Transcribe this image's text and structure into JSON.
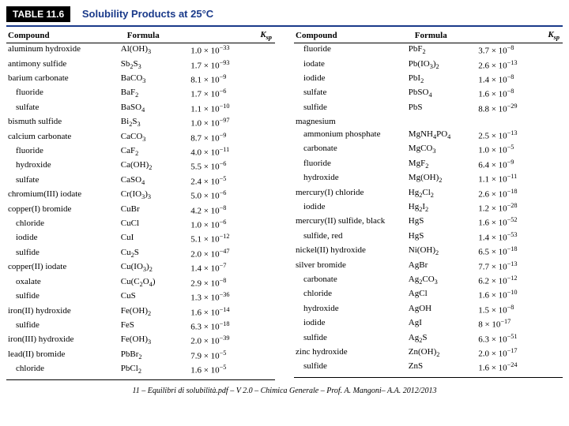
{
  "header": {
    "badge": "TABLE 11.6",
    "title": "Solubility Products at 25°C"
  },
  "columns_header": {
    "compound": "Compound",
    "formula": "Formula",
    "ksp_html": "<i>K</i><sub>sp</sub>"
  },
  "left": [
    {
      "compound": "aluminum hydroxide",
      "formula": "Al(OH)<sub>3</sub>",
      "ksp": "1.0 × 10<sup>−33</sup>"
    },
    {
      "compound": "antimony sulfide",
      "formula": "Sb<sub>2</sub>S<sub>3</sub>",
      "ksp": "1.7 × 10<sup>−93</sup>"
    },
    {
      "compound": "barium carbonate",
      "formula": "BaCO<sub>3</sub>",
      "ksp": "8.1 × 10<sup>−9</sup>"
    },
    {
      "compound": "fluoride",
      "sub": true,
      "formula": "BaF<sub>2</sub>",
      "ksp": "1.7 × 10<sup>−6</sup>"
    },
    {
      "compound": "sulfate",
      "sub": true,
      "formula": "BaSO<sub>4</sub>",
      "ksp": "1.1 × 10<sup>−10</sup>"
    },
    {
      "compound": "bismuth sulfide",
      "formula": "Bi<sub>2</sub>S<sub>3</sub>",
      "ksp": "1.0 × 10<sup>−97</sup>"
    },
    {
      "compound": "calcium carbonate",
      "formula": "CaCO<sub>3</sub>",
      "ksp": "8.7 × 10<sup>−9</sup>"
    },
    {
      "compound": "fluoride",
      "sub": true,
      "formula": "CaF<sub>2</sub>",
      "ksp": "4.0 × 10<sup>−11</sup>"
    },
    {
      "compound": "hydroxide",
      "sub": true,
      "formula": "Ca(OH)<sub>2</sub>",
      "ksp": "5.5 × 10<sup>−6</sup>"
    },
    {
      "compound": "sulfate",
      "sub": true,
      "formula": "CaSO<sub>4</sub>",
      "ksp": "2.4 × 10<sup>−5</sup>"
    },
    {
      "compound": "chromium(III) iodate",
      "formula": "Cr(IO<sub>3</sub>)<sub>3</sub>",
      "ksp": "5.0 × 10<sup>−6</sup>"
    },
    {
      "compound": "copper(I) bromide",
      "formula": "CuBr",
      "ksp": "4.2 × 10<sup>−8</sup>"
    },
    {
      "compound": "chloride",
      "sub": true,
      "formula": "CuCl",
      "ksp": "1.0 × 10<sup>−6</sup>"
    },
    {
      "compound": "iodide",
      "sub": true,
      "formula": "CuI",
      "ksp": "5.1 × 10<sup>−12</sup>"
    },
    {
      "compound": "sulfide",
      "sub": true,
      "formula": "Cu<sub>2</sub>S",
      "ksp": "2.0 × 10<sup>−47</sup>"
    },
    {
      "compound": "copper(II) iodate",
      "formula": "Cu(IO<sub>3</sub>)<sub>2</sub>",
      "ksp": "1.4 × 10<sup>−7</sup>"
    },
    {
      "compound": "oxalate",
      "sub": true,
      "formula": "Cu(C<sub>2</sub>O<sub>4</sub>)",
      "ksp": "2.9 × 10<sup>−8</sup>"
    },
    {
      "compound": "sulfide",
      "sub": true,
      "formula": "CuS",
      "ksp": "1.3 × 10<sup>−36</sup>"
    },
    {
      "compound": "iron(II) hydroxide",
      "formula": "Fe(OH)<sub>2</sub>",
      "ksp": "1.6 × 10<sup>−14</sup>"
    },
    {
      "compound": "sulfide",
      "sub": true,
      "formula": "FeS",
      "ksp": "6.3 × 10<sup>−18</sup>"
    },
    {
      "compound": "iron(III) hydroxide",
      "formula": "Fe(OH)<sub>3</sub>",
      "ksp": "2.0 × 10<sup>−39</sup>"
    },
    {
      "compound": "lead(II) bromide",
      "formula": "PbBr<sub>2</sub>",
      "ksp": "7.9 × 10<sup>−5</sup>"
    },
    {
      "compound": "chloride",
      "sub": true,
      "formula": "PbCl<sub>2</sub>",
      "ksp": "1.6 × 10<sup>−5</sup>"
    }
  ],
  "right": [
    {
      "compound": "fluoride",
      "sub": true,
      "formula": "PbF<sub>2</sub>",
      "ksp": "3.7 × 10<sup>−8</sup>"
    },
    {
      "compound": "iodate",
      "sub": true,
      "formula": "Pb(IO<sub>3</sub>)<sub>2</sub>",
      "ksp": "2.6 × 10<sup>−13</sup>"
    },
    {
      "compound": "iodide",
      "sub": true,
      "formula": "PbI<sub>2</sub>",
      "ksp": "1.4 × 10<sup>−8</sup>"
    },
    {
      "compound": "sulfate",
      "sub": true,
      "formula": "PbSO<sub>4</sub>",
      "ksp": "1.6 × 10<sup>−8</sup>"
    },
    {
      "compound": "sulfide",
      "sub": true,
      "formula": "PbS",
      "ksp": "8.8 × 10<sup>−29</sup>"
    },
    {
      "compound": "magnesium",
      "formula": "",
      "ksp": ""
    },
    {
      "compound": "ammonium phosphate",
      "sub": true,
      "formula": "MgNH<sub>4</sub>PO<sub>4</sub>",
      "ksp": "2.5 × 10<sup>−13</sup>"
    },
    {
      "compound": "carbonate",
      "sub": true,
      "formula": "MgCO<sub>3</sub>",
      "ksp": "1.0 × 10<sup>−5</sup>"
    },
    {
      "compound": "fluoride",
      "sub": true,
      "formula": "MgF<sub>2</sub>",
      "ksp": "6.4 × 10<sup>−9</sup>"
    },
    {
      "compound": "hydroxide",
      "sub": true,
      "formula": "Mg(OH)<sub>2</sub>",
      "ksp": "1.1 × 10<sup>−11</sup>"
    },
    {
      "compound": "mercury(I) chloride",
      "formula": "Hg<sub>2</sub>Cl<sub>2</sub>",
      "ksp": "2.6 × 10<sup>−18</sup>"
    },
    {
      "compound": "iodide",
      "sub": true,
      "formula": "Hg<sub>2</sub>I<sub>2</sub>",
      "ksp": "1.2 × 10<sup>−28</sup>"
    },
    {
      "compound": "mercury(II) sulfide, black",
      "formula": "HgS",
      "ksp": "1.6 × 10<sup>−52</sup>"
    },
    {
      "compound": "sulfide, red",
      "sub": true,
      "formula": "HgS",
      "ksp": "1.4 × 10<sup>−53</sup>"
    },
    {
      "compound": "nickel(II) hydroxide",
      "formula": "Ni(OH)<sub>2</sub>",
      "ksp": "6.5 × 10<sup>−18</sup>"
    },
    {
      "compound": "silver bromide",
      "formula": "AgBr",
      "ksp": "7.7 × 10<sup>−13</sup>"
    },
    {
      "compound": "carbonate",
      "sub": true,
      "formula": "Ag<sub>2</sub>CO<sub>3</sub>",
      "ksp": "6.2 × 10<sup>−12</sup>"
    },
    {
      "compound": "chloride",
      "sub": true,
      "formula": "AgCl",
      "ksp": "1.6 × 10<sup>−10</sup>"
    },
    {
      "compound": "hydroxide",
      "sub": true,
      "formula": "AgOH",
      "ksp": "1.5 × 10<sup>−8</sup>"
    },
    {
      "compound": "iodide",
      "sub": true,
      "formula": "AgI",
      "ksp": "8 × 10<sup>−17</sup>"
    },
    {
      "compound": "sulfide",
      "sub": true,
      "formula": "Ag<sub>2</sub>S",
      "ksp": "6.3 × 10<sup>−51</sup>"
    },
    {
      "compound": "zinc hydroxide",
      "formula": "Zn(OH)<sub>2</sub>",
      "ksp": "2.0 × 10<sup>−17</sup>"
    },
    {
      "compound": "sulfide",
      "sub": true,
      "formula": "ZnS",
      "ksp": "1.6 × 10<sup>−24</sup>"
    }
  ],
  "footer": "11 – Equilibri di solubilità.pdf – V 2.0 – Chimica Generale – Prof. A. Mangoni– A.A. 2012/2013"
}
